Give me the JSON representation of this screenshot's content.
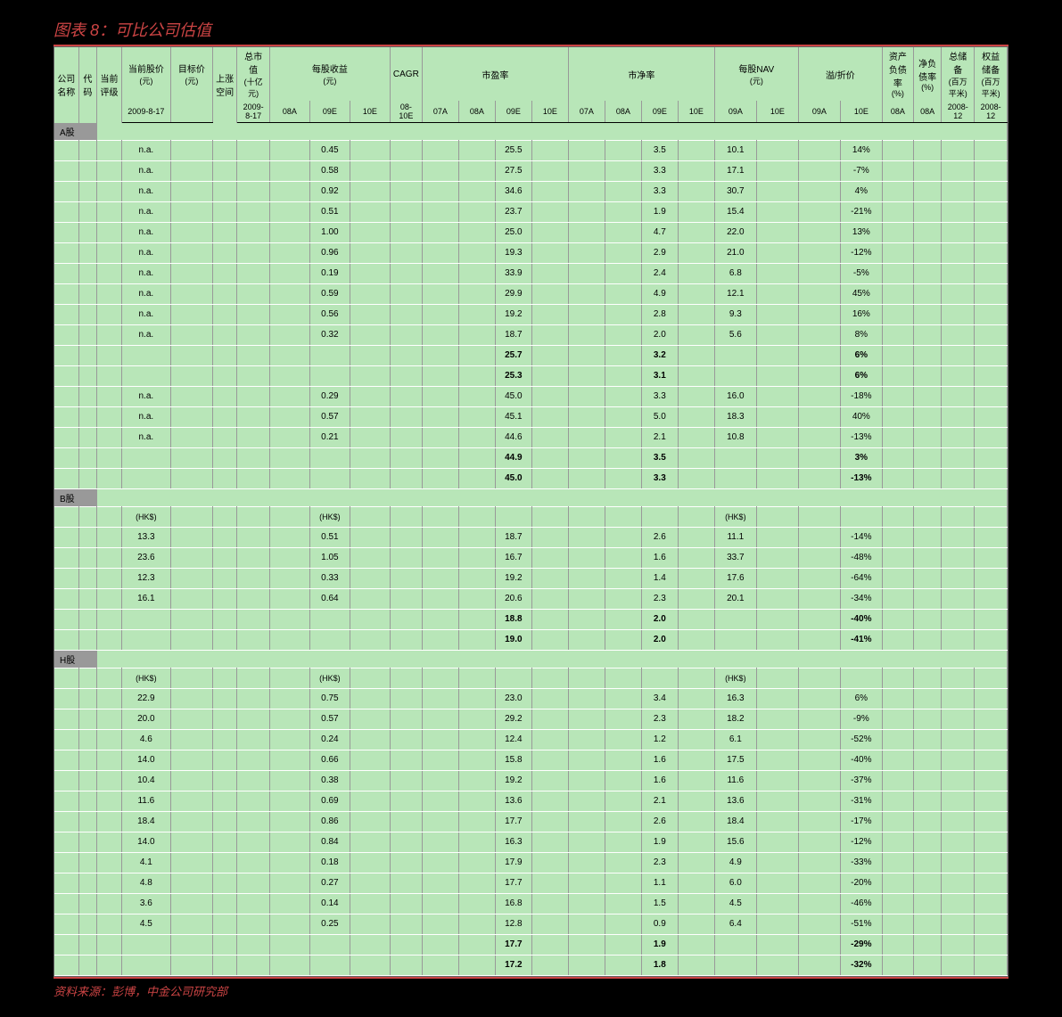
{
  "title": "图表 8：可比公司估值",
  "source": "资料来源：彭博，中金公司研究部",
  "colors": {
    "table_bg": "#b8e6b8",
    "section_bg": "#999999",
    "title_color": "#c44",
    "body_bg": "#000000"
  },
  "header": {
    "row1": [
      "公司名称",
      "代码",
      "当前评级",
      "当前股价",
      "目标价",
      "上涨空间",
      "总市值",
      "每股收益",
      "CAGR",
      "市盈率",
      "市净率",
      "每股NAV",
      "溢/折价",
      "资产负债率",
      "净负债率",
      "总储备",
      "权益储备"
    ],
    "row1_units": [
      "",
      "",
      "",
      "(元)",
      "(元)",
      "",
      "(十亿元)",
      "(元)",
      "",
      "",
      "",
      "(元)",
      "",
      "(%)",
      "(%)",
      "(百万平米)",
      "(百万平米)"
    ],
    "row2": [
      "",
      "",
      "",
      "2009-8-17",
      "",
      "",
      "2009-8-17",
      "08A",
      "09E",
      "10E",
      "08-10E",
      "07A",
      "08A",
      "09E",
      "10E",
      "07A",
      "08A",
      "09E",
      "10E",
      "09A",
      "10E",
      "09A",
      "10E",
      "08A",
      "08A",
      "2008-12",
      "2008-12"
    ]
  },
  "sections": [
    {
      "label": "A股",
      "currency_row": null,
      "rows": [
        {
          "price": "n.a.",
          "eps": "0.45",
          "pe": "25.5",
          "pb": "3.5",
          "nav": "10.1",
          "disc": "14%"
        },
        {
          "price": "n.a.",
          "eps": "0.58",
          "pe": "27.5",
          "pb": "3.3",
          "nav": "17.1",
          "disc": "-7%"
        },
        {
          "price": "n.a.",
          "eps": "0.92",
          "pe": "34.6",
          "pb": "3.3",
          "nav": "30.7",
          "disc": "4%"
        },
        {
          "price": "n.a.",
          "eps": "0.51",
          "pe": "23.7",
          "pb": "1.9",
          "nav": "15.4",
          "disc": "-21%"
        },
        {
          "price": "n.a.",
          "eps": "1.00",
          "pe": "25.0",
          "pb": "4.7",
          "nav": "22.0",
          "disc": "13%"
        },
        {
          "price": "n.a.",
          "eps": "0.96",
          "pe": "19.3",
          "pb": "2.9",
          "nav": "21.0",
          "disc": "-12%"
        },
        {
          "price": "n.a.",
          "eps": "0.19",
          "pe": "33.9",
          "pb": "2.4",
          "nav": "6.8",
          "disc": "-5%"
        },
        {
          "price": "n.a.",
          "eps": "0.59",
          "pe": "29.9",
          "pb": "4.9",
          "nav": "12.1",
          "disc": "45%"
        },
        {
          "price": "n.a.",
          "eps": "0.56",
          "pe": "19.2",
          "pb": "2.8",
          "nav": "9.3",
          "disc": "16%"
        },
        {
          "price": "n.a.",
          "eps": "0.32",
          "pe": "18.7",
          "pb": "2.0",
          "nav": "5.6",
          "disc": "8%"
        }
      ],
      "summary": [
        {
          "pe": "25.7",
          "pb": "3.2",
          "disc": "6%"
        },
        {
          "pe": "25.3",
          "pb": "3.1",
          "disc": "6%"
        }
      ]
    },
    {
      "label": null,
      "currency_row": null,
      "rows": [
        {
          "price": "n.a.",
          "eps": "0.29",
          "pe": "45.0",
          "pb": "3.3",
          "nav": "16.0",
          "disc": "-18%"
        },
        {
          "price": "n.a.",
          "eps": "0.57",
          "pe": "45.1",
          "pb": "5.0",
          "nav": "18.3",
          "disc": "40%"
        },
        {
          "price": "n.a.",
          "eps": "0.21",
          "pe": "44.6",
          "pb": "2.1",
          "nav": "10.8",
          "disc": "-13%"
        }
      ],
      "summary": [
        {
          "pe": "44.9",
          "pb": "3.5",
          "disc": "3%"
        },
        {
          "pe": "45.0",
          "pb": "3.3",
          "disc": "-13%"
        }
      ]
    },
    {
      "label": "B股",
      "currency_row": "(HK$)",
      "rows": [
        {
          "price": "13.3",
          "eps": "0.51",
          "pe": "18.7",
          "pb": "2.6",
          "nav": "11.1",
          "disc": "-14%"
        },
        {
          "price": "23.6",
          "eps": "1.05",
          "pe": "16.7",
          "pb": "1.6",
          "nav": "33.7",
          "disc": "-48%"
        },
        {
          "price": "12.3",
          "eps": "0.33",
          "pe": "19.2",
          "pb": "1.4",
          "nav": "17.6",
          "disc": "-64%"
        },
        {
          "price": "16.1",
          "eps": "0.64",
          "pe": "20.6",
          "pb": "2.3",
          "nav": "20.1",
          "disc": "-34%"
        }
      ],
      "summary": [
        {
          "pe": "18.8",
          "pb": "2.0",
          "disc": "-40%"
        },
        {
          "pe": "19.0",
          "pb": "2.0",
          "disc": "-41%"
        }
      ]
    },
    {
      "label": "H股",
      "currency_row": "(HK$)",
      "rows": [
        {
          "price": "22.9",
          "eps": "0.75",
          "pe": "23.0",
          "pb": "3.4",
          "nav": "16.3",
          "disc": "6%"
        },
        {
          "price": "20.0",
          "eps": "0.57",
          "pe": "29.2",
          "pb": "2.3",
          "nav": "18.2",
          "disc": "-9%"
        },
        {
          "price": "4.6",
          "eps": "0.24",
          "pe": "12.4",
          "pb": "1.2",
          "nav": "6.1",
          "disc": "-52%"
        },
        {
          "price": "14.0",
          "eps": "0.66",
          "pe": "15.8",
          "pb": "1.6",
          "nav": "17.5",
          "disc": "-40%"
        },
        {
          "price": "10.4",
          "eps": "0.38",
          "pe": "19.2",
          "pb": "1.6",
          "nav": "11.6",
          "disc": "-37%"
        },
        {
          "price": "11.6",
          "eps": "0.69",
          "pe": "13.6",
          "pb": "2.1",
          "nav": "13.6",
          "disc": "-31%"
        },
        {
          "price": "18.4",
          "eps": "0.86",
          "pe": "17.7",
          "pb": "2.6",
          "nav": "18.4",
          "disc": "-17%"
        },
        {
          "price": "14.0",
          "eps": "0.84",
          "pe": "16.3",
          "pb": "1.9",
          "nav": "15.6",
          "disc": "-12%"
        },
        {
          "price": "4.1",
          "eps": "0.18",
          "pe": "17.9",
          "pb": "2.3",
          "nav": "4.9",
          "disc": "-33%"
        },
        {
          "price": "4.8",
          "eps": "0.27",
          "pe": "17.7",
          "pb": "1.1",
          "nav": "6.0",
          "disc": "-20%"
        },
        {
          "price": "3.6",
          "eps": "0.14",
          "pe": "16.8",
          "pb": "1.5",
          "nav": "4.5",
          "disc": "-46%"
        },
        {
          "price": "4.5",
          "eps": "0.25",
          "pe": "12.8",
          "pb": "0.9",
          "nav": "6.4",
          "disc": "-51%"
        }
      ],
      "summary": [
        {
          "pe": "17.7",
          "pb": "1.9",
          "disc": "-29%"
        },
        {
          "pe": "17.2",
          "pb": "1.8",
          "disc": "-32%"
        }
      ]
    }
  ]
}
